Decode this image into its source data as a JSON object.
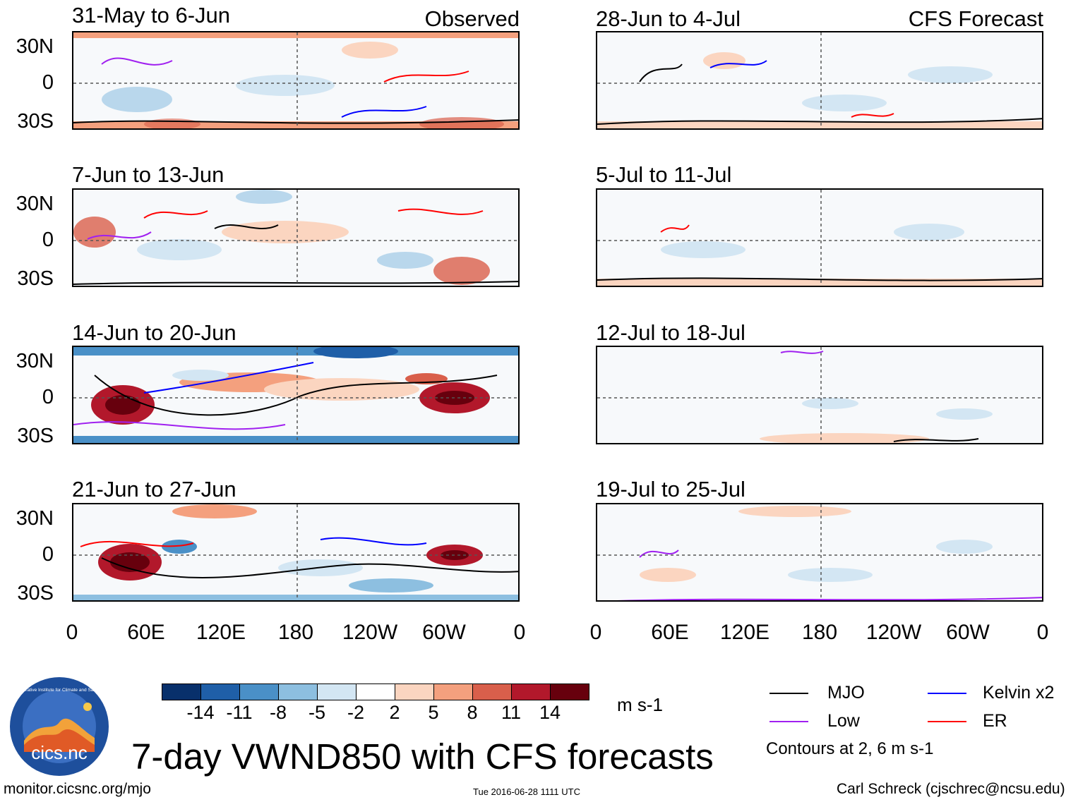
{
  "observed_label": "Observed",
  "forecast_label": "CFS Forecast",
  "observed_panels": [
    {
      "title": "31-May to 6-Jun"
    },
    {
      "title": "7-Jun to 13-Jun"
    },
    {
      "title": "14-Jun to 20-Jun"
    },
    {
      "title": "21-Jun to 27-Jun"
    }
  ],
  "forecast_panels": [
    {
      "title": "28-Jun to 4-Jul"
    },
    {
      "title": "5-Jul to 11-Jul"
    },
    {
      "title": "12-Jul to 18-Jul"
    },
    {
      "title": "19-Jul to 25-Jul"
    }
  ],
  "lat_labels": [
    "30N",
    "0",
    "30S"
  ],
  "lon_labels": [
    "0",
    "60E",
    "120E",
    "180",
    "120W",
    "60W",
    "0"
  ],
  "colorbar": {
    "values": [
      "-14",
      "-11",
      "-8",
      "-5",
      "-2",
      "2",
      "5",
      "8",
      "11",
      "14"
    ],
    "colors": [
      "#08306b",
      "#1f5fa8",
      "#4a90c7",
      "#8dbfe0",
      "#d3e6f3",
      "#ffffff",
      "#fbd5c0",
      "#f4a07e",
      "#d95f4b",
      "#b2182b",
      "#67000d"
    ],
    "units": "m s-1"
  },
  "legend": {
    "items": [
      {
        "label": "MJO",
        "color": "#000000"
      },
      {
        "label": "Kelvin x2",
        "color": "#0000ff"
      },
      {
        "label": "Low",
        "color": "#a020f0"
      },
      {
        "label": "ER",
        "color": "#ff0000"
      }
    ],
    "note": "Contours at 2, 6 m s-1"
  },
  "logo_text": "cics.nc",
  "logo_ring_text": "Cooperative Institute for Climate and Satellites",
  "main_title": "7-day VWND850 with CFS forecasts",
  "footer_left": "monitor.cicsnc.org/mjo",
  "footer_center": "Tue 2016-06-28 1111 UTC",
  "footer_right": "Carl Schreck (cjschrec@ncsu.edu)"
}
